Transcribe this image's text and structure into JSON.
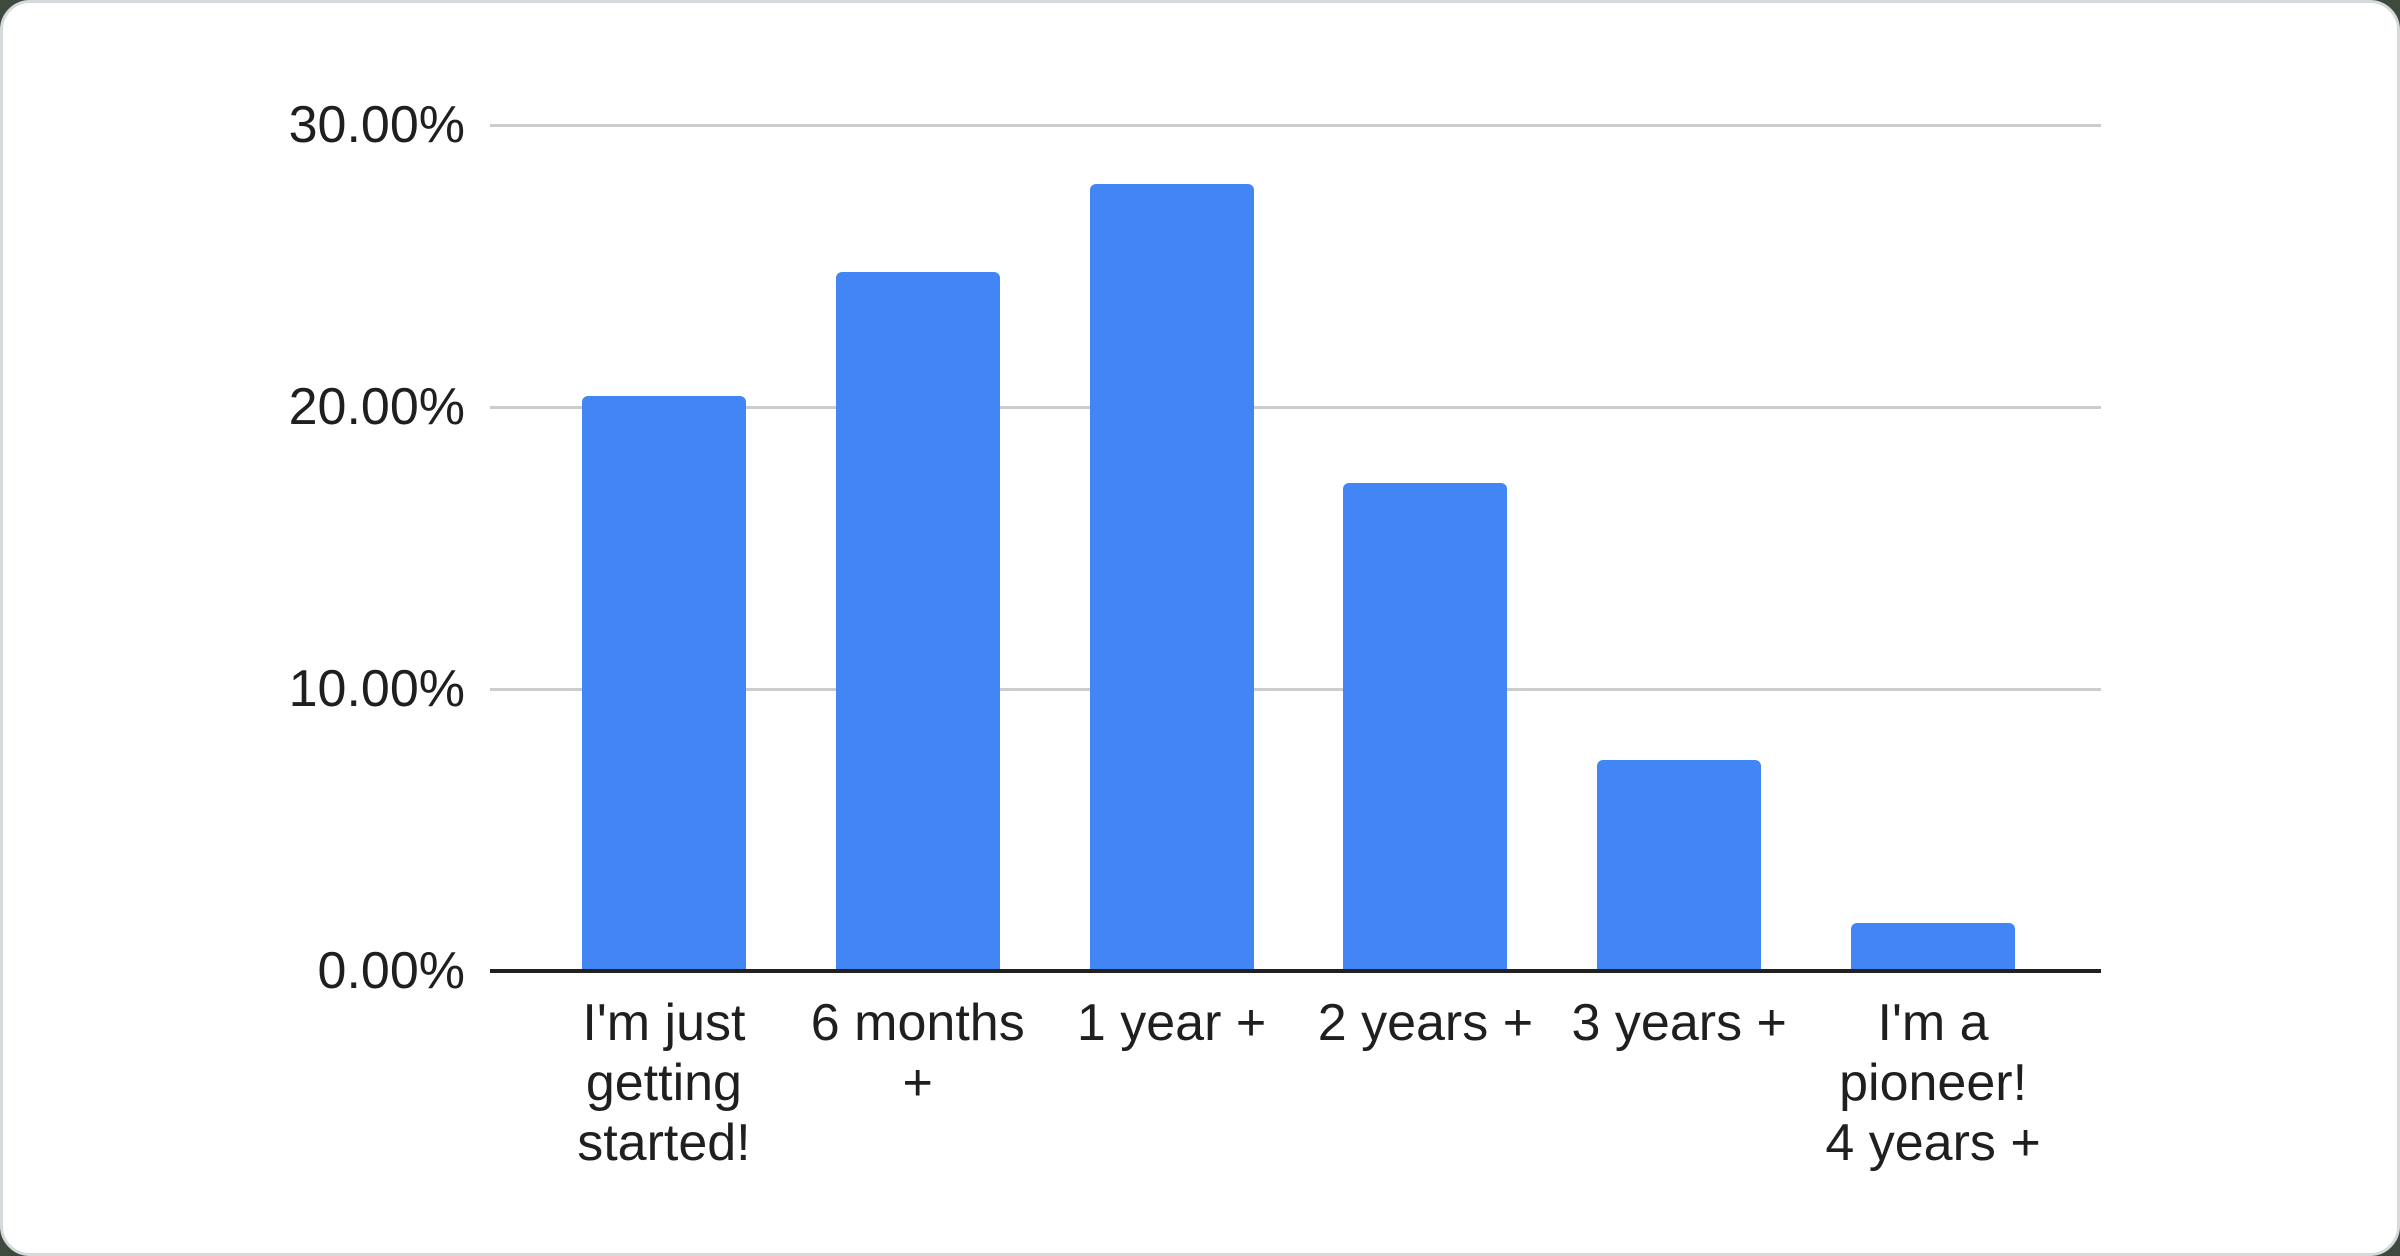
{
  "page": {
    "backdrop_color": "#3e4a3e",
    "card_background": "#ffffff",
    "card_border_color": "#d6dadd"
  },
  "chart_data": {
    "type": "bar",
    "title": "",
    "categories": [
      "I'm just getting started!",
      "6 months +",
      "1 year +",
      "2 years +",
      "3 years +",
      "I'm a pioneer! 4 years +"
    ],
    "category_lines": [
      [
        "I'm just",
        "getting",
        "started!"
      ],
      [
        "6 months",
        "+"
      ],
      [
        "1 year +"
      ],
      [
        "2 years +"
      ],
      [
        "3 years +"
      ],
      [
        "I'm a",
        "pioneer!",
        "4 years +"
      ]
    ],
    "values": [
      20.4,
      24.8,
      27.9,
      17.3,
      7.5,
      1.7
    ],
    "unit": "%",
    "xlabel": "",
    "ylabel": "",
    "ylim": [
      0,
      30
    ],
    "yticks": [
      {
        "label": "30.00%",
        "value": 30
      },
      {
        "label": "20.00%",
        "value": 20
      },
      {
        "label": "10.00%",
        "value": 10
      },
      {
        "label": "0.00%",
        "value": 0
      }
    ],
    "grid": true,
    "legend_position": "none",
    "bar_color": "#4285f4",
    "gridline_color": "#cccccc",
    "axis_line_color": "#212121",
    "label_color": "#1f1f1f"
  }
}
